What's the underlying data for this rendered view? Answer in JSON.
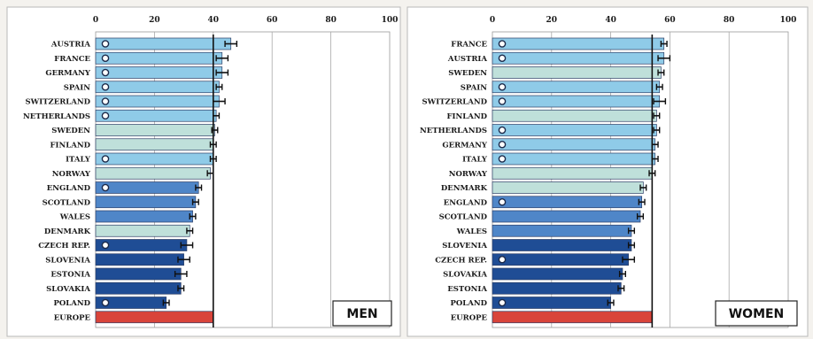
{
  "chart_data": [
    {
      "type": "bar",
      "orientation": "horizontal",
      "panel_label": "MEN",
      "xlim": [
        0,
        100
      ],
      "xticks": [
        "0",
        "20",
        "40",
        "60",
        "80",
        "100"
      ],
      "grid": true,
      "reference_line": 40,
      "categories": [
        "AUSTRIA",
        "FRANCE",
        "GERMANY",
        "SPAIN",
        "SWITZERLAND",
        "NETHERLANDS",
        "SWEDEN",
        "FINLAND",
        "ITALY",
        "NORWAY",
        "ENGLAND",
        "SCOTLAND",
        "WALES",
        "DENMARK",
        "CZECH REP.",
        "SLOVENIA",
        "ESTONIA",
        "SLOVAKIA",
        "POLAND",
        "EUROPE"
      ],
      "values": [
        46,
        43,
        43,
        42,
        42,
        41,
        40.5,
        40,
        40,
        39,
        35,
        34,
        33,
        32,
        31,
        30,
        29,
        29,
        24,
        40
      ],
      "error_margin": [
        2,
        2,
        2,
        1,
        2,
        1,
        1,
        1,
        1,
        1,
        1,
        1,
        1,
        1,
        2,
        2,
        2,
        1,
        1,
        0
      ],
      "marker": [
        true,
        true,
        true,
        true,
        true,
        true,
        false,
        false,
        true,
        false,
        true,
        false,
        false,
        false,
        true,
        false,
        false,
        false,
        true,
        false
      ],
      "colors": [
        "#8fcbe8",
        "#8fcbe8",
        "#8fcbe8",
        "#8fcbe8",
        "#8fcbe8",
        "#8fcbe8",
        "#bfe0da",
        "#bfe0da",
        "#8fcbe8",
        "#bfe0da",
        "#4f86c8",
        "#4f86c8",
        "#4f86c8",
        "#bfe0da",
        "#1f4d95",
        "#1f4d95",
        "#1f4d95",
        "#1f4d95",
        "#1f4d95",
        "#d9443a"
      ]
    },
    {
      "type": "bar",
      "orientation": "horizontal",
      "panel_label": "WOMEN",
      "xlim": [
        0,
        100
      ],
      "xticks": [
        "0",
        "20",
        "40",
        "60",
        "80",
        "100"
      ],
      "grid": true,
      "reference_line": 54,
      "categories": [
        "FRANCE",
        "AUSTRIA",
        "SWEDEN",
        "SPAIN",
        "SWITZERLAND",
        "FINLAND",
        "NETHERLANDS",
        "GERMANY",
        "ITALY",
        "NORWAY",
        "DENMARK",
        "ENGLAND",
        "SCOTLAND",
        "WALES",
        "SLOVENIA",
        "CZECH REP.",
        "SLOVAKIA",
        "ESTONIA",
        "POLAND",
        "EUROPE"
      ],
      "values": [
        58,
        58,
        57,
        56.5,
        56.5,
        55.5,
        55.5,
        55,
        55,
        54,
        51,
        50.5,
        50,
        47,
        47,
        46,
        44,
        43.5,
        40,
        54
      ],
      "error_margin": [
        1,
        2,
        1,
        1,
        2,
        1,
        1,
        1,
        1,
        1,
        1,
        1,
        1,
        1,
        1,
        2,
        1,
        1,
        1,
        0
      ],
      "marker": [
        true,
        true,
        false,
        true,
        true,
        false,
        true,
        true,
        true,
        false,
        false,
        true,
        false,
        false,
        false,
        true,
        false,
        false,
        true,
        false
      ],
      "colors": [
        "#8fcbe8",
        "#8fcbe8",
        "#bfe0da",
        "#8fcbe8",
        "#8fcbe8",
        "#bfe0da",
        "#8fcbe8",
        "#8fcbe8",
        "#8fcbe8",
        "#bfe0da",
        "#bfe0da",
        "#4f86c8",
        "#4f86c8",
        "#4f86c8",
        "#1f4d95",
        "#1f4d95",
        "#1f4d95",
        "#1f4d95",
        "#1f4d95",
        "#d9443a"
      ]
    }
  ]
}
